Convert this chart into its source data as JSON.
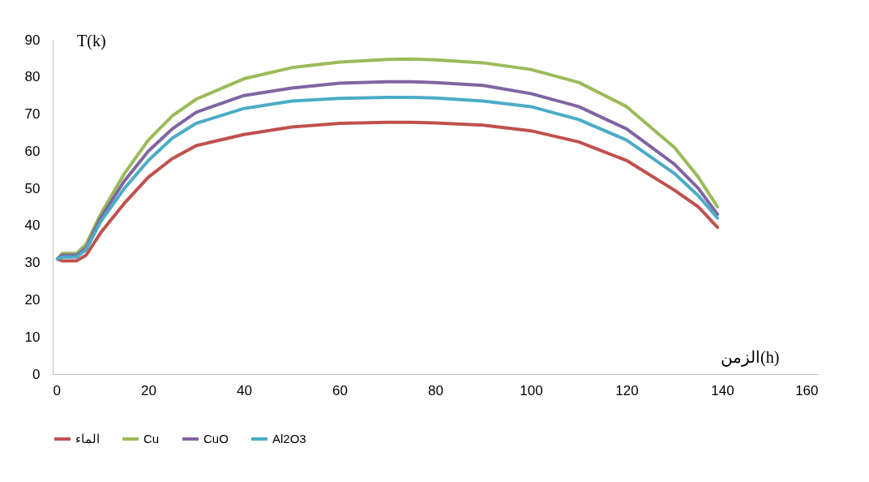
{
  "chart_data": {
    "type": "line",
    "xlabel": "الزمن(h)",
    "ylabel": "T(k)",
    "x": [
      1,
      2,
      5,
      7,
      10,
      15,
      20,
      25,
      30,
      40,
      50,
      60,
      70,
      75,
      80,
      90,
      100,
      110,
      120,
      130,
      135,
      139
    ],
    "xlim": [
      0,
      160
    ],
    "xticks": [
      0,
      20,
      40,
      60,
      80,
      100,
      120,
      140,
      160
    ],
    "ylim": [
      0,
      90
    ],
    "yticks": [
      0,
      10,
      20,
      30,
      40,
      50,
      60,
      70,
      80,
      90
    ],
    "grid": false,
    "legend": "bottom",
    "marker": "none",
    "line_style": "solid",
    "series": [
      {
        "name": "الماء",
        "color": "#c0504d",
        "values": [
          31,
          30.5,
          30.5,
          32,
          38,
          46,
          53,
          58,
          61.5,
          64.5,
          66.5,
          67.5,
          67.8,
          67.8,
          67.6,
          67,
          65.5,
          62.5,
          57.5,
          49.5,
          45,
          39.5
        ]
      },
      {
        "name": "Cu",
        "color": "#9bbb59",
        "values": [
          31,
          32.5,
          32.5,
          35,
          43,
          54,
          63,
          69.5,
          74,
          79.5,
          82.5,
          84,
          84.7,
          84.8,
          84.6,
          83.8,
          82,
          78.5,
          72,
          61,
          53,
          45
        ]
      },
      {
        "name": "CuO",
        "color": "#8064a2",
        "values": [
          31,
          32,
          32,
          34,
          42,
          52,
          60,
          66,
          70.5,
          75,
          77,
          78.3,
          78.7,
          78.7,
          78.5,
          77.7,
          75.5,
          72,
          66,
          56.5,
          50,
          43
        ]
      },
      {
        "name": "Al2O3",
        "color": "#4bacc6",
        "values": [
          31,
          31.5,
          31.5,
          33.5,
          41,
          50,
          57.5,
          63.5,
          67.5,
          71.5,
          73.5,
          74.2,
          74.5,
          74.5,
          74.3,
          73.5,
          72,
          68.5,
          63,
          54,
          48,
          42
        ]
      }
    ]
  }
}
